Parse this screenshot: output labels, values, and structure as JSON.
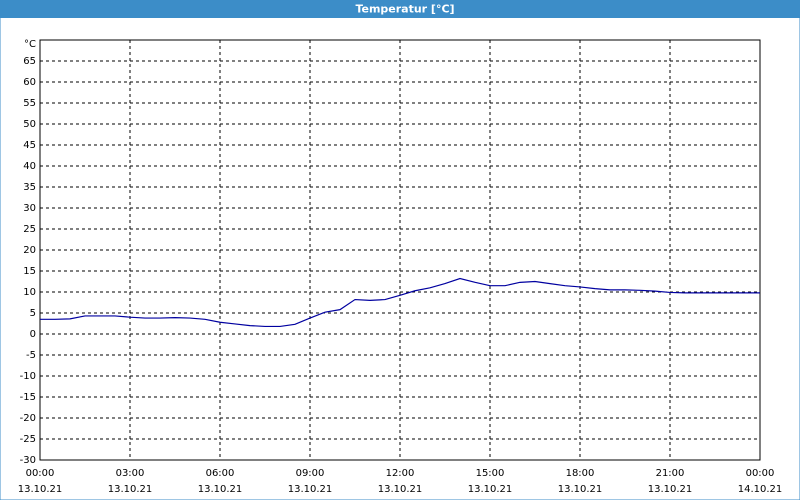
{
  "chart_data": {
    "type": "line",
    "title": "Temperatur [°C]",
    "y_label": "°C",
    "x": [
      0,
      0.5,
      1,
      1.5,
      2,
      2.5,
      3,
      3.5,
      4,
      4.5,
      5,
      5.5,
      6,
      6.5,
      7,
      7.5,
      8,
      8.5,
      9,
      9.5,
      10,
      10.5,
      11,
      11.5,
      12,
      12.5,
      13,
      13.5,
      14,
      14.5,
      15,
      15.5,
      16,
      16.5,
      17,
      17.5,
      18,
      18.5,
      19,
      19.5,
      20,
      20.5,
      21,
      21.5,
      22,
      22.5,
      23,
      23.5,
      24
    ],
    "series": [
      {
        "color": "#0000a0",
        "values": [
          3.5,
          3.5,
          3.6,
          4.3,
          4.3,
          4.3,
          4.0,
          3.8,
          3.8,
          3.9,
          3.8,
          3.5,
          2.8,
          2.4,
          2.0,
          1.8,
          1.8,
          2.3,
          3.8,
          5.2,
          5.8,
          8.2,
          8.0,
          8.2,
          9.2,
          10.3,
          11.0,
          12.0,
          13.2,
          12.3,
          11.5,
          11.5,
          12.3,
          12.5,
          12.0,
          11.5,
          11.2,
          10.8,
          10.5,
          10.5,
          10.4,
          10.2,
          9.9,
          9.8,
          9.8,
          9.8,
          9.8,
          9.8,
          9.8
        ]
      }
    ],
    "xlim": [
      0,
      24
    ],
    "xticks": [
      {
        "value": 0,
        "label": "00:00"
      },
      {
        "value": 3,
        "label": "03:00"
      },
      {
        "value": 6,
        "label": "06:00"
      },
      {
        "value": 9,
        "label": "09:00"
      },
      {
        "value": 12,
        "label": "12:00"
      },
      {
        "value": 15,
        "label": "15:00"
      },
      {
        "value": 18,
        "label": "18:00"
      },
      {
        "value": 21,
        "label": "21:00"
      },
      {
        "value": 24,
        "label": "00:00"
      }
    ],
    "xtick_dates": [
      "13.10.21",
      "13.10.21",
      "13.10.21",
      "13.10.21",
      "13.10.21",
      "13.10.21",
      "13.10.21",
      "13.10.21",
      "14.10.21"
    ],
    "ylim": [
      -30,
      70
    ],
    "yticks": [
      -30,
      -25,
      -20,
      -15,
      -10,
      -5,
      0,
      5,
      10,
      15,
      20,
      25,
      30,
      35,
      40,
      45,
      50,
      55,
      60,
      65
    ],
    "grid": true
  }
}
